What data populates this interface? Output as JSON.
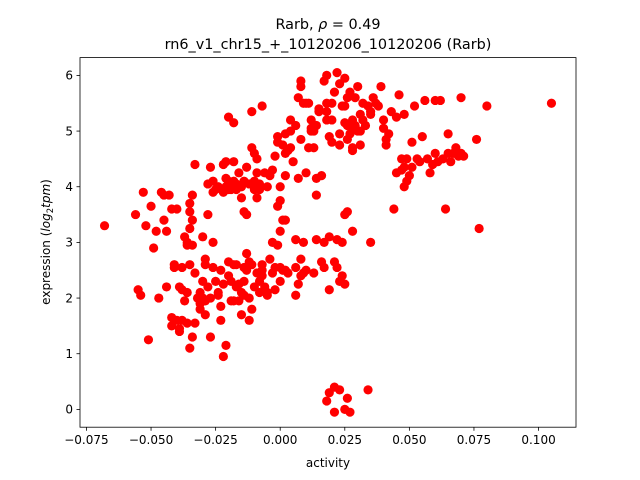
{
  "chart_data": {
    "type": "scatter",
    "title_prefix": "Rarb, ",
    "title_rho_symbol": "ρ",
    "title_rho_value": " = 0.49",
    "subtitle": "rn6_v1_chr15_+_10120206_10120206 (Rarb)",
    "xlabel": "activity",
    "ylabel_prefix": "expression (",
    "ylabel_log": "log",
    "ylabel_sub": "2",
    "ylabel_tpm": "tpm",
    "ylabel_suffix": ")",
    "xlim": [
      -0.0775,
      0.1145
    ],
    "ylim": [
      -0.32,
      6.32
    ],
    "x_ticks": [
      -0.075,
      -0.05,
      -0.025,
      0.0,
      0.025,
      0.05,
      0.075,
      0.1
    ],
    "x_tick_labels": [
      "−0.075",
      "−0.050",
      "−0.025",
      "0.000",
      "0.025",
      "0.050",
      "0.075",
      "0.100"
    ],
    "y_ticks": [
      0,
      1,
      2,
      3,
      4,
      5,
      6
    ],
    "y_tick_labels": [
      "0",
      "1",
      "2",
      "3",
      "4",
      "5",
      "6"
    ],
    "grid": false,
    "marker_color": "#ff0000",
    "points": [
      [
        -0.068,
        3.3
      ],
      [
        -0.056,
        3.5
      ],
      [
        -0.055,
        2.15
      ],
      [
        -0.054,
        2.05
      ],
      [
        -0.053,
        3.9
      ],
      [
        -0.052,
        3.3
      ],
      [
        -0.051,
        1.25
      ],
      [
        -0.05,
        3.65
      ],
      [
        -0.049,
        2.9
      ],
      [
        -0.048,
        3.2
      ],
      [
        -0.047,
        2.0
      ],
      [
        -0.046,
        3.9
      ],
      [
        -0.045,
        3.85
      ],
      [
        -0.045,
        3.4
      ],
      [
        -0.044,
        3.2
      ],
      [
        -0.044,
        2.2
      ],
      [
        -0.043,
        3.85
      ],
      [
        -0.042,
        3.6
      ],
      [
        -0.042,
        1.65
      ],
      [
        -0.042,
        1.5
      ],
      [
        -0.041,
        2.6
      ],
      [
        -0.041,
        2.55
      ],
      [
        -0.04,
        3.6
      ],
      [
        -0.04,
        1.6
      ],
      [
        -0.039,
        1.45
      ],
      [
        -0.039,
        1.4
      ],
      [
        -0.039,
        2.2
      ],
      [
        -0.038,
        2.15
      ],
      [
        -0.038,
        1.6
      ],
      [
        -0.038,
        2.55
      ],
      [
        -0.037,
        3.1
      ],
      [
        -0.037,
        1.95
      ],
      [
        -0.036,
        3.0
      ],
      [
        -0.036,
        2.95
      ],
      [
        -0.036,
        2.1
      ],
      [
        -0.036,
        1.55
      ],
      [
        -0.035,
        3.7
      ],
      [
        -0.035,
        3.55
      ],
      [
        -0.035,
        3.25
      ],
      [
        -0.035,
        2.6
      ],
      [
        -0.035,
        1.1
      ],
      [
        -0.034,
        3.85
      ],
      [
        -0.034,
        3.4
      ],
      [
        -0.034,
        1.3
      ],
      [
        -0.034,
        2.95
      ],
      [
        -0.033,
        2.45
      ],
      [
        -0.033,
        1.55
      ],
      [
        -0.033,
        4.4
      ],
      [
        -0.032,
        2.0
      ],
      [
        -0.031,
        1.8
      ],
      [
        -0.031,
        1.9
      ],
      [
        -0.031,
        2.1
      ],
      [
        -0.03,
        3.1
      ],
      [
        -0.03,
        2.3
      ],
      [
        -0.03,
        2.0
      ],
      [
        -0.029,
        2.7
      ],
      [
        -0.029,
        1.7
      ],
      [
        -0.029,
        1.95
      ],
      [
        -0.029,
        2.6
      ],
      [
        -0.028,
        3.5
      ],
      [
        -0.028,
        4.05
      ],
      [
        -0.028,
        2.2
      ],
      [
        -0.027,
        4.35
      ],
      [
        -0.027,
        2.0
      ],
      [
        -0.027,
        1.3
      ],
      [
        -0.026,
        3.9
      ],
      [
        -0.026,
        4.1
      ],
      [
        -0.026,
        3.0
      ],
      [
        -0.026,
        2.55
      ],
      [
        -0.025,
        2.3
      ],
      [
        -0.025,
        3.95
      ],
      [
        -0.024,
        2.1
      ],
      [
        -0.024,
        4.0
      ],
      [
        -0.024,
        2.05
      ],
      [
        -0.023,
        1.6
      ],
      [
        -0.023,
        1.85
      ],
      [
        -0.023,
        2.5
      ],
      [
        -0.022,
        4.4
      ],
      [
        -0.022,
        0.95
      ],
      [
        -0.022,
        3.9
      ],
      [
        -0.022,
        2.25
      ],
      [
        -0.021,
        4.0
      ],
      [
        -0.021,
        4.15
      ],
      [
        -0.021,
        4.45
      ],
      [
        -0.021,
        1.15
      ],
      [
        -0.02,
        3.95
      ],
      [
        -0.02,
        2.65
      ],
      [
        -0.02,
        2.4
      ],
      [
        -0.02,
        5.25
      ],
      [
        -0.02,
        4.1
      ],
      [
        -0.019,
        4.0
      ],
      [
        -0.019,
        3.95
      ],
      [
        -0.019,
        1.95
      ],
      [
        -0.019,
        2.3
      ],
      [
        -0.018,
        2.6
      ],
      [
        -0.018,
        4.45
      ],
      [
        -0.018,
        5.15
      ],
      [
        -0.018,
        4.1
      ],
      [
        -0.018,
        1.95
      ],
      [
        -0.017,
        3.95
      ],
      [
        -0.017,
        4.05
      ],
      [
        -0.017,
        2.2
      ],
      [
        -0.017,
        2.6
      ],
      [
        -0.016,
        2.25
      ],
      [
        -0.016,
        1.95
      ],
      [
        -0.016,
        4.25
      ],
      [
        -0.016,
        4.0
      ],
      [
        -0.015,
        1.7
      ],
      [
        -0.015,
        2.1
      ],
      [
        -0.015,
        3.8
      ],
      [
        -0.015,
        4.0
      ],
      [
        -0.014,
        2.55
      ],
      [
        -0.014,
        2.3
      ],
      [
        -0.014,
        2.05
      ],
      [
        -0.014,
        3.55
      ],
      [
        -0.014,
        4.1
      ],
      [
        -0.013,
        2.8
      ],
      [
        -0.013,
        2.5
      ],
      [
        -0.013,
        4.35
      ],
      [
        -0.013,
        3.5
      ],
      [
        -0.012,
        1.6
      ],
      [
        -0.012,
        4.05
      ],
      [
        -0.012,
        2.0
      ],
      [
        -0.012,
        2.65
      ],
      [
        -0.011,
        4.7
      ],
      [
        -0.011,
        2.6
      ],
      [
        -0.011,
        1.8
      ],
      [
        -0.011,
        5.35
      ],
      [
        -0.01,
        2.2
      ],
      [
        -0.01,
        4.1
      ],
      [
        -0.01,
        3.95
      ],
      [
        -0.01,
        4.6
      ],
      [
        -0.009,
        2.45
      ],
      [
        -0.009,
        4.5
      ],
      [
        -0.009,
        3.8
      ],
      [
        -0.009,
        4.25
      ],
      [
        -0.008,
        3.95
      ],
      [
        -0.008,
        2.3
      ],
      [
        -0.008,
        2.1
      ],
      [
        -0.008,
        4.05
      ],
      [
        -0.007,
        2.5
      ],
      [
        -0.007,
        2.4
      ],
      [
        -0.007,
        5.45
      ],
      [
        -0.007,
        2.6
      ],
      [
        -0.006,
        4.25
      ],
      [
        -0.006,
        2.2
      ],
      [
        -0.005,
        2.1
      ],
      [
        -0.005,
        4.0
      ],
      [
        -0.005,
        2.05
      ],
      [
        -0.004,
        4.2
      ],
      [
        -0.004,
        2.7
      ],
      [
        -0.003,
        4.3
      ],
      [
        -0.003,
        2.45
      ],
      [
        -0.003,
        3.0
      ],
      [
        -0.002,
        4.55
      ],
      [
        -0.002,
        2.55
      ],
      [
        -0.002,
        2.15
      ],
      [
        -0.001,
        4.9
      ],
      [
        -0.001,
        4.8
      ],
      [
        -0.001,
        3.65
      ],
      [
        -0.001,
        2.95
      ],
      [
        0.0,
        2.55
      ],
      [
        0.0,
        3.75
      ],
      [
        0.0,
        3.2
      ],
      [
        0.0,
        2.3
      ],
      [
        0.0,
        4.0
      ],
      [
        0.001,
        4.75
      ],
      [
        0.001,
        2.5
      ],
      [
        0.001,
        3.4
      ],
      [
        0.002,
        2.5
      ],
      [
        0.002,
        4.95
      ],
      [
        0.002,
        4.6
      ],
      [
        0.002,
        4.2
      ],
      [
        0.002,
        3.4
      ],
      [
        0.003,
        4.65
      ],
      [
        0.003,
        2.45
      ],
      [
        0.004,
        4.7
      ],
      [
        0.004,
        5.2
      ],
      [
        0.004,
        5.0
      ],
      [
        0.005,
        4.45
      ],
      [
        0.006,
        5.1
      ],
      [
        0.006,
        2.55
      ],
      [
        0.006,
        3.05
      ],
      [
        0.006,
        2.05
      ],
      [
        0.007,
        5.6
      ],
      [
        0.007,
        2.25
      ],
      [
        0.007,
        4.15
      ],
      [
        0.008,
        2.4
      ],
      [
        0.008,
        5.8
      ],
      [
        0.008,
        4.85
      ],
      [
        0.008,
        2.7
      ],
      [
        0.008,
        5.9
      ],
      [
        0.009,
        3.0
      ],
      [
        0.009,
        2.45
      ],
      [
        0.009,
        5.5
      ],
      [
        0.01,
        5.5
      ],
      [
        0.01,
        2.5
      ],
      [
        0.01,
        4.25
      ],
      [
        0.011,
        5.5
      ],
      [
        0.011,
        4.7
      ],
      [
        0.012,
        5.05
      ],
      [
        0.012,
        5.0
      ],
      [
        0.012,
        5.2
      ],
      [
        0.013,
        4.7
      ],
      [
        0.013,
        2.45
      ],
      [
        0.013,
        5.0
      ],
      [
        0.014,
        3.05
      ],
      [
        0.014,
        3.85
      ],
      [
        0.014,
        5.1
      ],
      [
        0.014,
        4.15
      ],
      [
        0.015,
        5.4
      ],
      [
        0.015,
        5.35
      ],
      [
        0.016,
        2.65
      ],
      [
        0.016,
        4.2
      ],
      [
        0.017,
        3.0
      ],
      [
        0.017,
        5.9
      ],
      [
        0.017,
        2.55
      ],
      [
        0.018,
        5.2
      ],
      [
        0.018,
        6.0
      ],
      [
        0.018,
        5.5
      ],
      [
        0.018,
        5.35
      ],
      [
        0.018,
        0.15
      ],
      [
        0.019,
        2.15
      ],
      [
        0.019,
        4.9
      ],
      [
        0.019,
        3.1
      ],
      [
        0.019,
        0.3
      ],
      [
        0.02,
        4.8
      ],
      [
        0.02,
        5.5
      ],
      [
        0.02,
        5.2
      ],
      [
        0.021,
        0.4
      ],
      [
        0.021,
        5.7
      ],
      [
        0.021,
        2.65
      ],
      [
        0.021,
        -0.05
      ],
      [
        0.022,
        6.05
      ],
      [
        0.022,
        2.55
      ],
      [
        0.022,
        3.05
      ],
      [
        0.023,
        0.35
      ],
      [
        0.023,
        2.3
      ],
      [
        0.023,
        4.95
      ],
      [
        0.023,
        4.75
      ],
      [
        0.023,
        5.85
      ],
      [
        0.024,
        3.0
      ],
      [
        0.024,
        2.4
      ],
      [
        0.024,
        5.45
      ],
      [
        0.025,
        5.45
      ],
      [
        0.025,
        5.15
      ],
      [
        0.025,
        3.5
      ],
      [
        0.025,
        2.25
      ],
      [
        0.025,
        5.95
      ],
      [
        0.025,
        0.0
      ],
      [
        0.026,
        5.6
      ],
      [
        0.026,
        5.1
      ],
      [
        0.026,
        4.85
      ],
      [
        0.026,
        3.55
      ],
      [
        0.026,
        0.2
      ],
      [
        0.027,
        4.95
      ],
      [
        0.027,
        -0.05
      ],
      [
        0.027,
        5.7
      ],
      [
        0.028,
        5.05
      ],
      [
        0.028,
        4.7
      ],
      [
        0.028,
        4.65
      ],
      [
        0.028,
        5.2
      ],
      [
        0.028,
        3.2
      ],
      [
        0.029,
        5.1
      ],
      [
        0.029,
        5.6
      ],
      [
        0.03,
        5.8
      ],
      [
        0.03,
        5.0
      ],
      [
        0.031,
        5.0
      ],
      [
        0.031,
        4.75
      ],
      [
        0.031,
        5.3
      ],
      [
        0.032,
        5.2
      ],
      [
        0.032,
        5.5
      ],
      [
        0.033,
        5.1
      ],
      [
        0.034,
        5.45
      ],
      [
        0.034,
        0.35
      ],
      [
        0.035,
        5.35
      ],
      [
        0.035,
        3.0
      ],
      [
        0.035,
        5.3
      ],
      [
        0.036,
        5.6
      ],
      [
        0.037,
        5.5
      ],
      [
        0.038,
        5.45
      ],
      [
        0.039,
        5.8
      ],
      [
        0.04,
        5.2
      ],
      [
        0.04,
        5.05
      ],
      [
        0.041,
        4.85
      ],
      [
        0.041,
        4.75
      ],
      [
        0.042,
        4.95
      ],
      [
        0.043,
        5.35
      ],
      [
        0.044,
        3.6
      ],
      [
        0.045,
        4.25
      ],
      [
        0.045,
        5.25
      ],
      [
        0.046,
        5.65
      ],
      [
        0.047,
        4.5
      ],
      [
        0.047,
        4.3
      ],
      [
        0.048,
        5.3
      ],
      [
        0.048,
        4.0
      ],
      [
        0.048,
        4.35
      ],
      [
        0.049,
        4.1
      ],
      [
        0.049,
        4.5
      ],
      [
        0.05,
        4.2
      ],
      [
        0.051,
        4.8
      ],
      [
        0.051,
        4.35
      ],
      [
        0.052,
        5.45
      ],
      [
        0.053,
        4.5
      ],
      [
        0.054,
        4.45
      ],
      [
        0.055,
        4.9
      ],
      [
        0.056,
        5.55
      ],
      [
        0.057,
        4.5
      ],
      [
        0.058,
        4.25
      ],
      [
        0.059,
        4.4
      ],
      [
        0.06,
        4.6
      ],
      [
        0.06,
        5.55
      ],
      [
        0.061,
        4.45
      ],
      [
        0.062,
        5.55
      ],
      [
        0.063,
        4.5
      ],
      [
        0.064,
        3.6
      ],
      [
        0.065,
        4.95
      ],
      [
        0.065,
        4.6
      ],
      [
        0.066,
        4.45
      ],
      [
        0.067,
        4.6
      ],
      [
        0.068,
        4.65
      ],
      [
        0.068,
        4.7
      ],
      [
        0.069,
        4.55
      ],
      [
        0.07,
        5.6
      ],
      [
        0.07,
        4.6
      ],
      [
        0.071,
        4.55
      ],
      [
        0.076,
        4.85
      ],
      [
        0.077,
        3.25
      ],
      [
        0.08,
        5.45
      ],
      [
        0.105,
        5.5
      ]
    ]
  }
}
